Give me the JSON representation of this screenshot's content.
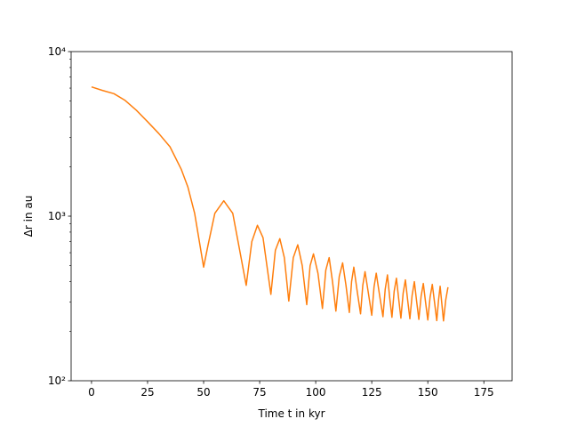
{
  "chart_data": {
    "type": "line",
    "xlabel": "Time t in kyr",
    "ylabel": "Δr in au",
    "yscale": "log",
    "xlim": [
      -9.1,
      187.6
    ],
    "ylim": [
      100,
      10000
    ],
    "xticks": [
      0,
      25,
      50,
      75,
      100,
      125,
      150,
      175
    ],
    "yticks": [
      {
        "value": 100,
        "label": "10²"
      },
      {
        "value": 1000,
        "label": "10³"
      },
      {
        "value": 10000,
        "label": "10⁴"
      }
    ],
    "yminorticks": [
      200,
      300,
      400,
      500,
      600,
      700,
      800,
      900,
      2000,
      3000,
      4000,
      5000,
      6000,
      7000,
      8000,
      9000
    ],
    "grid": false,
    "series": [
      {
        "color": "#ff7f0e",
        "x": [
          0,
          5,
          10,
          15,
          20,
          25,
          30,
          35,
          40,
          43,
          46,
          48,
          50,
          52,
          55,
          59,
          63,
          66,
          69,
          71.5,
          74,
          76.5,
          80,
          82,
          84,
          86,
          88,
          90,
          92,
          94,
          96,
          97.5,
          99,
          101,
          103,
          104.5,
          106,
          107.5,
          109,
          110.5,
          112,
          113.5,
          115,
          116,
          117,
          118.5,
          120,
          121,
          122,
          123.5,
          125,
          126,
          127,
          128.5,
          130,
          131,
          132,
          133,
          134,
          135,
          136,
          137,
          138,
          139,
          140,
          141,
          142,
          143,
          144,
          145,
          146,
          147,
          148,
          149,
          150,
          151,
          152,
          153,
          154,
          154.8,
          155.5,
          156.3,
          157,
          158,
          159
        ],
        "values": [
          6100,
          5800,
          5550,
          5050,
          4400,
          3750,
          3180,
          2640,
          1930,
          1500,
          1040,
          715,
          490,
          670,
          1040,
          1240,
          1040,
          630,
          380,
          700,
          880,
          740,
          335,
          620,
          730,
          560,
          305,
          560,
          670,
          500,
          290,
          500,
          590,
          450,
          275,
          470,
          560,
          400,
          265,
          430,
          520,
          380,
          260,
          400,
          490,
          350,
          255,
          380,
          460,
          340,
          250,
          370,
          450,
          330,
          245,
          360,
          440,
          320,
          243,
          350,
          420,
          315,
          240,
          340,
          410,
          310,
          238,
          330,
          400,
          305,
          236,
          325,
          390,
          300,
          234,
          320,
          385,
          300,
          232,
          310,
          375,
          290,
          231,
          310,
          370
        ]
      }
    ]
  }
}
